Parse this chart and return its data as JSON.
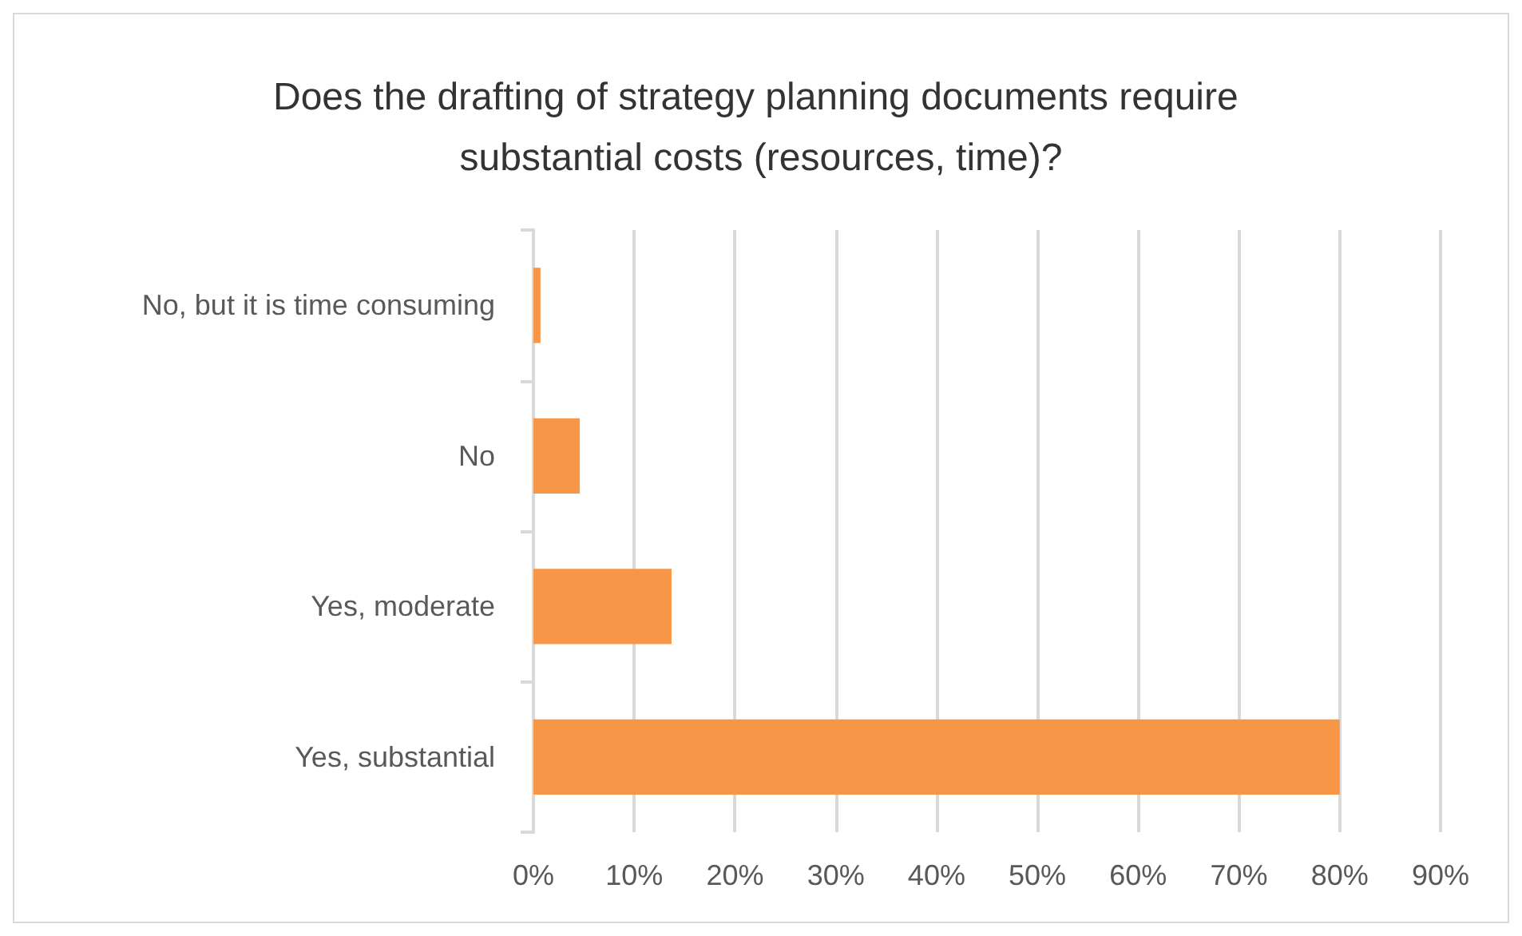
{
  "chart_data": {
    "type": "bar",
    "orientation": "horizontal",
    "title": "Does the drafting of strategy planning documents require substantial costs (resources, time)?",
    "categories": [
      "No, but it is time consuming",
      "No",
      "Yes, moderate",
      "Yes, substantial"
    ],
    "values": [
      0.7,
      4.6,
      13.7,
      80
    ],
    "color": "#f79646",
    "xlim": [
      0,
      90
    ],
    "xticks": [
      {
        "value": 0,
        "label": "0%"
      },
      {
        "value": 10,
        "label": "10%"
      },
      {
        "value": 20,
        "label": "20%"
      },
      {
        "value": 30,
        "label": "30%"
      },
      {
        "value": 40,
        "label": "40%"
      },
      {
        "value": 50,
        "label": "50%"
      },
      {
        "value": 60,
        "label": "60%"
      },
      {
        "value": 70,
        "label": "70%"
      },
      {
        "value": 80,
        "label": "80%"
      },
      {
        "value": 90,
        "label": "90%"
      }
    ],
    "grid": "x"
  }
}
